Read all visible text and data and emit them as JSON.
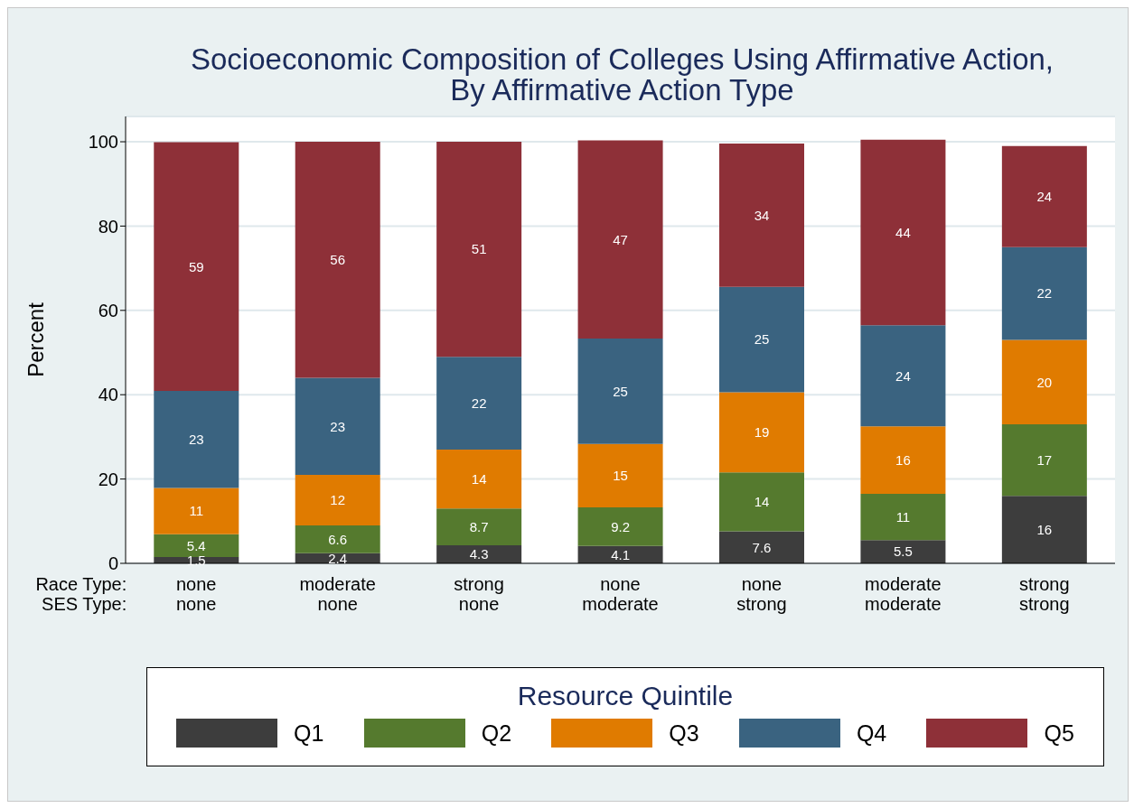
{
  "chart_data": {
    "type": "bar",
    "stacked": true,
    "title": "Socioeconomic Composition of Colleges Using Affirmative Action,\nBy Affirmative Action Type",
    "ylabel": "Percent",
    "legend_title": "Resource Quintile",
    "categories": [
      "none\nnone",
      "moderate\nnone",
      "strong\nnone",
      "none\nmoderate",
      "none\nstrong",
      "moderate\nmoderate",
      "strong\nstrong"
    ],
    "annotations": [
      "Race Type:",
      "SES Type:"
    ],
    "series": [
      {
        "name": "Q1",
        "color": "#3d3d3d",
        "values": [
          1.5,
          2.4,
          4.3,
          4.1,
          7.6,
          5.5,
          16
        ]
      },
      {
        "name": "Q2",
        "color": "#557a2e",
        "values": [
          5.4,
          6.6,
          8.7,
          9.2,
          14,
          11,
          17
        ]
      },
      {
        "name": "Q3",
        "color": "#e07b00",
        "values": [
          11,
          12,
          14,
          15,
          19,
          16,
          20
        ]
      },
      {
        "name": "Q4",
        "color": "#3a6380",
        "values": [
          23,
          23,
          22,
          25,
          25,
          24,
          22
        ]
      },
      {
        "name": "Q5",
        "color": "#8e3038",
        "values": [
          59,
          56,
          51,
          47,
          34,
          44,
          24
        ]
      }
    ],
    "ylim": [
      0,
      106
    ],
    "yticks": [
      0,
      20,
      40,
      60,
      80,
      100
    ],
    "grid": "y",
    "data_labels": true,
    "legend": "bottom"
  }
}
